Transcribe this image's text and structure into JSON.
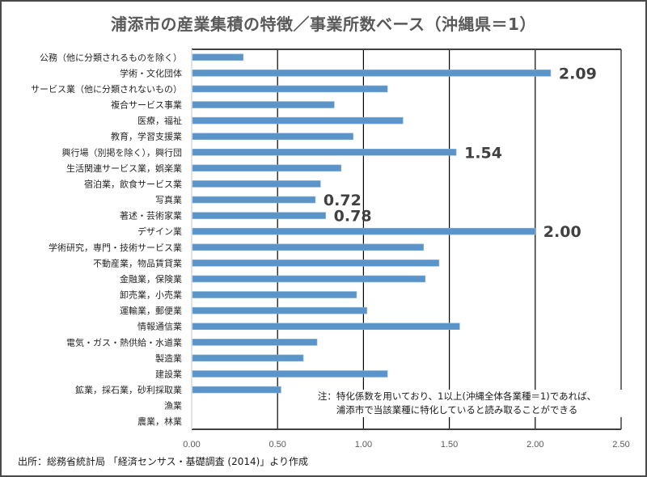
{
  "chart_data": {
    "type": "bar",
    "orientation": "horizontal",
    "title": "浦添市の産業集積の特徴／事業所数ベース（沖縄県＝1）",
    "xlabel": "",
    "ylabel": "",
    "xlim": [
      0,
      2.5
    ],
    "xticks": [
      "0.00",
      "0.50",
      "1.00",
      "1.50",
      "2.00",
      "2.50"
    ],
    "xtick_values": [
      0,
      0.5,
      1.0,
      1.5,
      2.0,
      2.5
    ],
    "grid": "vertical",
    "bar_color": "#5b94c8",
    "categories": [
      "公務（他に分類されるものを除く）",
      "学術・文化団体",
      "サービス業（他に分類されないもの）",
      "複合サービス事業",
      "医療，福祉",
      "教育，学習支援業",
      "興行場（別掲を除く），興行団",
      "生活関連サービス業，娯楽業",
      "宿泊業，飲食サービス業",
      "写真業",
      "著述・芸術家業",
      "デザイン業",
      "学術研究，専門・技術サービス業",
      "不動産業，物品賃貸業",
      "金融業，保険業",
      "卸売業，小売業",
      "運輸業，郵便業",
      "情報通信業",
      "電気・ガス・熱供給・水道業",
      "製造業",
      "建設業",
      "鉱業，採石業，砂利採取業",
      "漁業",
      "農業，林業"
    ],
    "values": [
      0.3,
      2.09,
      1.14,
      0.83,
      1.23,
      0.94,
      1.54,
      0.87,
      0.75,
      0.72,
      0.78,
      2.0,
      1.35,
      1.44,
      1.36,
      0.96,
      1.02,
      1.56,
      0.73,
      0.65,
      1.14,
      0.52,
      0.0,
      0.0
    ],
    "data_labels": [
      {
        "index": 1,
        "text": "2.09"
      },
      {
        "index": 6,
        "text": "1.54"
      },
      {
        "index": 9,
        "text": "0.72"
      },
      {
        "index": 10,
        "text": "0.78"
      },
      {
        "index": 11,
        "text": "2.00"
      }
    ],
    "legend": "none"
  },
  "note": {
    "line1": "注：特化係数を用いており、1以上(沖縄全体各業種＝1)であれば、",
    "line2": "浦添市で当該業種に特化していると読み取ることができる"
  },
  "source": "出所：総務省統計局 「経済センサス・基礎調査 (2014)」より作成"
}
